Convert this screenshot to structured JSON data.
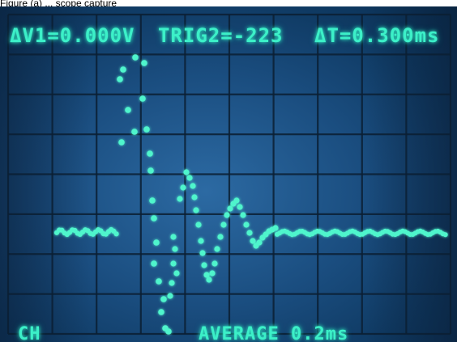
{
  "caption": "Figure (a) ... scope capture",
  "readouts": {
    "top_left": "ΔV1=0.000V",
    "top_mid": "TRIG2=-223",
    "top_right": "ΔT=0.300ms",
    "bottom_left": "CH",
    "bottom_mid": "AVERAGE 0.2ms"
  },
  "colors": {
    "screen_bg": "#1a4d7f",
    "grid": "#0b1f33",
    "trace": "#4ff5cc"
  }
}
